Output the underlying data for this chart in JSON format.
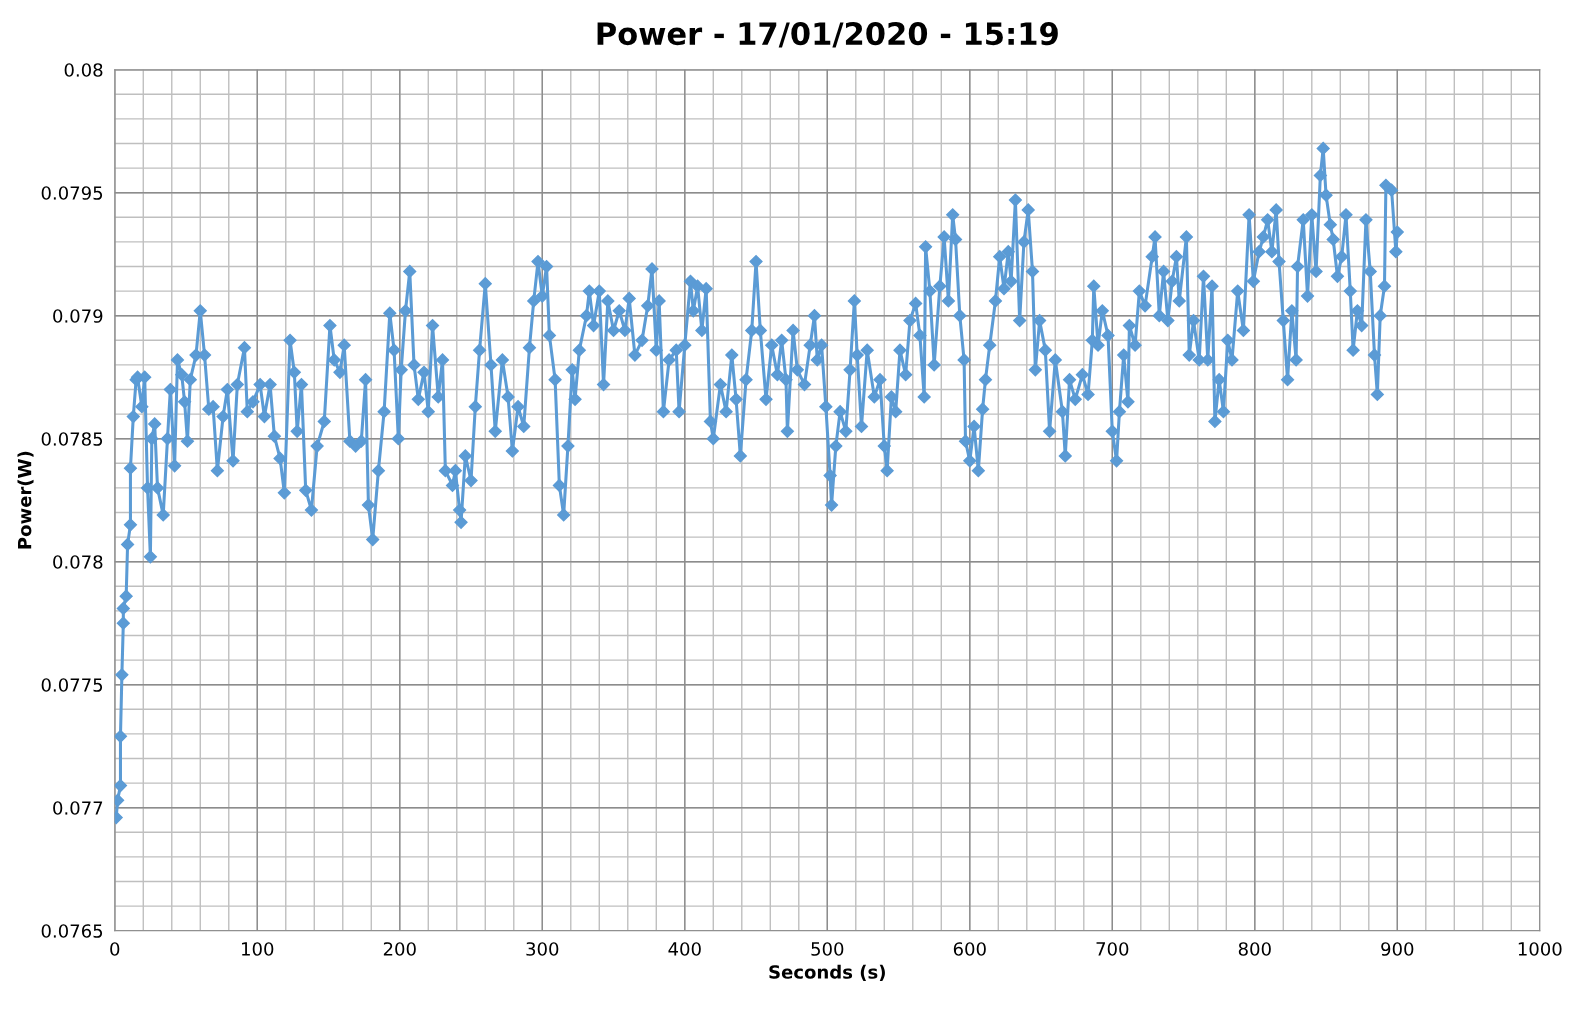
{
  "chart_data": {
    "type": "line",
    "title": "Power - 17/01/2020 - 15:19",
    "xlabel": "Seconds (s)",
    "ylabel": "Power(W)",
    "xlim": [
      0,
      1000
    ],
    "xticks": [
      0,
      {
        "value": 20,
        "label": null
      },
      {
        "value": 40,
        "label": null
      },
      {
        "value": 60,
        "label": null
      },
      {
        "value": 80,
        "label": null
      },
      100,
      {
        "value": 120,
        "label": null
      },
      {
        "value": 140,
        "label": null
      },
      {
        "value": 160,
        "label": null
      },
      {
        "value": 180,
        "label": null
      },
      200,
      {
        "value": 220,
        "label": null
      },
      {
        "value": 240,
        "label": null
      },
      {
        "value": 260,
        "label": null
      },
      {
        "value": 280,
        "label": null
      },
      300,
      {
        "value": 320,
        "label": null
      },
      {
        "value": 340,
        "label": null
      },
      {
        "value": 360,
        "label": null
      },
      {
        "value": 380,
        "label": null
      },
      400,
      {
        "value": 420,
        "label": null
      },
      {
        "value": 440,
        "label": null
      },
      {
        "value": 460,
        "label": null
      },
      {
        "value": 480,
        "label": null
      },
      500,
      {
        "value": 520,
        "label": null
      },
      {
        "value": 540,
        "label": null
      },
      {
        "value": 560,
        "label": null
      },
      {
        "value": 580,
        "label": null
      },
      600,
      {
        "value": 620,
        "label": null
      },
      {
        "value": 640,
        "label": null
      },
      {
        "value": 660,
        "label": null
      },
      {
        "value": 680,
        "label": null
      },
      700,
      {
        "value": 720,
        "label": null
      },
      {
        "value": 740,
        "label": null
      },
      {
        "value": 760,
        "label": null
      },
      {
        "value": 780,
        "label": null
      },
      800,
      {
        "value": 820,
        "label": null
      },
      {
        "value": 840,
        "label": null
      },
      {
        "value": 860,
        "label": null
      },
      {
        "value": 880,
        "label": null
      },
      900,
      {
        "value": 920,
        "label": null
      },
      {
        "value": 940,
        "label": null
      },
      {
        "value": 960,
        "label": null
      },
      {
        "value": 980,
        "label": null
      },
      1000
    ],
    "ylim": [
      0.0765,
      0.08
    ],
    "yticks": [
      0.0765,
      {
        "value": 0.0766,
        "label": null
      },
      {
        "value": 0.0767,
        "label": null
      },
      {
        "value": 0.0768,
        "label": null
      },
      {
        "value": 0.0769,
        "label": null
      },
      0.077,
      {
        "value": 0.0771,
        "label": null
      },
      {
        "value": 0.0772,
        "label": null
      },
      {
        "value": 0.0773,
        "label": null
      },
      {
        "value": 0.0774,
        "label": null
      },
      0.0775,
      {
        "value": 0.0776,
        "label": null
      },
      {
        "value": 0.0777,
        "label": null
      },
      {
        "value": 0.0778,
        "label": null
      },
      {
        "value": 0.0779,
        "label": null
      },
      0.078,
      {
        "value": 0.0781,
        "label": null
      },
      {
        "value": 0.0782,
        "label": null
      },
      {
        "value": 0.0783,
        "label": null
      },
      {
        "value": 0.0784,
        "label": null
      },
      0.0785,
      {
        "value": 0.0786,
        "label": null
      },
      {
        "value": 0.0787,
        "label": null
      },
      {
        "value": 0.0788,
        "label": null
      },
      {
        "value": 0.0789,
        "label": null
      },
      0.079,
      {
        "value": 0.0791,
        "label": null
      },
      {
        "value": 0.0792,
        "label": null
      },
      {
        "value": 0.0793,
        "label": null
      },
      {
        "value": 0.0794,
        "label": null
      },
      0.0795,
      {
        "value": 0.0796,
        "label": null
      },
      {
        "value": 0.0797,
        "label": null
      },
      {
        "value": 0.0798,
        "label": null
      },
      {
        "value": 0.0799,
        "label": null
      },
      0.08
    ],
    "grid": true,
    "marker": "diamond",
    "line_style": "solid",
    "series": [
      {
        "color": "#5b9bd5",
        "x": [
          1,
          2,
          4,
          4,
          5,
          6,
          6,
          8,
          9,
          11,
          11,
          13,
          15,
          16,
          19,
          21,
          23,
          25,
          26,
          28,
          30,
          34,
          37,
          39,
          42,
          44,
          47,
          49,
          51,
          53,
          57,
          60,
          63,
          66,
          69,
          72,
          76,
          79,
          83,
          86,
          91,
          93,
          97,
          102,
          105,
          109,
          112,
          116,
          119,
          123,
          126,
          128,
          131,
          134,
          138,
          142,
          147,
          151,
          154,
          158,
          161,
          165,
          169,
          173,
          176,
          178,
          181,
          185,
          189,
          193,
          196,
          199,
          201,
          204,
          207,
          210,
          213,
          217,
          220,
          223,
          227,
          230,
          232,
          237,
          239,
          242,
          243,
          246,
          250,
          253,
          256,
          260,
          264,
          267,
          272,
          276,
          279,
          283,
          287,
          291,
          294,
          297,
          300,
          303,
          305,
          309,
          312,
          315,
          318,
          321,
          323,
          326,
          331,
          333,
          336,
          340,
          343,
          346,
          350,
          354,
          358,
          361,
          365,
          370,
          374,
          377,
          380,
          382,
          385,
          389,
          394,
          396,
          400,
          404,
          406,
          409,
          412,
          415,
          418,
          420,
          425,
          429,
          433,
          436,
          439,
          443,
          447,
          450,
          453,
          457,
          461,
          465,
          468,
          471,
          472,
          476,
          479,
          484,
          488,
          491,
          493,
          496,
          499,
          502,
          503,
          506,
          509,
          513,
          516,
          519,
          521,
          524,
          528,
          533,
          537,
          540,
          542,
          545,
          548,
          551,
          555,
          558,
          562,
          565,
          568,
          569,
          572,
          575,
          579,
          582,
          585,
          588,
          590,
          593,
          596,
          597,
          600,
          603,
          606,
          609,
          611,
          614,
          618,
          621,
          624,
          627,
          629,
          632,
          635,
          638,
          641,
          644,
          646,
          649,
          653,
          656,
          660,
          665,
          667,
          670,
          674,
          679,
          683,
          686,
          687,
          690,
          693,
          697,
          700,
          703,
          705,
          708,
          711,
          712,
          716,
          719,
          723,
          728,
          730,
          733,
          736,
          739,
          742,
          745,
          747,
          752,
          754,
          757,
          761,
          764,
          767,
          770,
          772,
          775,
          778,
          781,
          784,
          788,
          792,
          796,
          799,
          803,
          806,
          809,
          812,
          815,
          817,
          820,
          823,
          826,
          829,
          830,
          834,
          837,
          840,
          843,
          846,
          848,
          850,
          853,
          855,
          858,
          861,
          864,
          867,
          869,
          872,
          875,
          878,
          881,
          884,
          886,
          888,
          891,
          892,
          896,
          899,
          900
        ],
        "values": [
          0.07696,
          0.07703,
          0.07709,
          0.07729,
          0.07754,
          0.07775,
          0.07781,
          0.07786,
          0.07807,
          0.07815,
          0.07838,
          0.07859,
          0.07874,
          0.07875,
          0.07863,
          0.07875,
          0.0783,
          0.07802,
          0.0785,
          0.07856,
          0.0783,
          0.07819,
          0.0785,
          0.0787,
          0.07839,
          0.07882,
          0.07876,
          0.07865,
          0.07849,
          0.07874,
          0.07884,
          0.07902,
          0.07884,
          0.07862,
          0.07863,
          0.07837,
          0.07859,
          0.0787,
          0.07841,
          0.07872,
          0.07887,
          0.07861,
          0.07865,
          0.07872,
          0.07859,
          0.07872,
          0.07851,
          0.07842,
          0.07828,
          0.0789,
          0.07877,
          0.07853,
          0.07872,
          0.07829,
          0.07821,
          0.07847,
          0.07857,
          0.07896,
          0.07882,
          0.07877,
          0.07888,
          0.07849,
          0.07847,
          0.07849,
          0.07874,
          0.07823,
          0.07809,
          0.07837,
          0.07861,
          0.07901,
          0.07886,
          0.0785,
          0.07878,
          0.07902,
          0.07918,
          0.0788,
          0.07866,
          0.07877,
          0.07861,
          0.07896,
          0.07867,
          0.07882,
          0.07837,
          0.07831,
          0.07837,
          0.07821,
          0.07816,
          0.07843,
          0.07833,
          0.07863,
          0.07886,
          0.07913,
          0.0788,
          0.07853,
          0.07882,
          0.07867,
          0.07845,
          0.07863,
          0.07855,
          0.07887,
          0.07906,
          0.07922,
          0.07908,
          0.0792,
          0.07892,
          0.07874,
          0.07831,
          0.07819,
          0.07847,
          0.07878,
          0.07866,
          0.07886,
          0.079,
          0.0791,
          0.07896,
          0.0791,
          0.07872,
          0.07906,
          0.07894,
          0.07902,
          0.07894,
          0.07907,
          0.07884,
          0.0789,
          0.07904,
          0.07919,
          0.07886,
          0.07906,
          0.07861,
          0.07882,
          0.07886,
          0.07861,
          0.07888,
          0.07914,
          0.07902,
          0.07912,
          0.07894,
          0.07911,
          0.07857,
          0.0785,
          0.07872,
          0.07861,
          0.07884,
          0.07866,
          0.07843,
          0.07874,
          0.07894,
          0.07922,
          0.07894,
          0.07866,
          0.07888,
          0.07876,
          0.0789,
          0.07874,
          0.07853,
          0.07894,
          0.07878,
          0.07872,
          0.07888,
          0.079,
          0.07882,
          0.07888,
          0.07863,
          0.07835,
          0.07823,
          0.07847,
          0.07861,
          0.07853,
          0.07878,
          0.07906,
          0.07884,
          0.07855,
          0.07886,
          0.07867,
          0.07874,
          0.07847,
          0.07837,
          0.07867,
          0.07861,
          0.07886,
          0.07876,
          0.07898,
          0.07905,
          0.07892,
          0.07867,
          0.07928,
          0.0791,
          0.0788,
          0.07912,
          0.07932,
          0.07906,
          0.07941,
          0.07931,
          0.079,
          0.07882,
          0.07849,
          0.07841,
          0.07855,
          0.07837,
          0.07862,
          0.07874,
          0.07888,
          0.07906,
          0.07924,
          0.07911,
          0.07926,
          0.07914,
          0.07947,
          0.07898,
          0.0793,
          0.07943,
          0.07918,
          0.07878,
          0.07898,
          0.07886,
          0.07853,
          0.07882,
          0.07861,
          0.07843,
          0.07874,
          0.07866,
          0.07876,
          0.07868,
          0.0789,
          0.07912,
          0.07888,
          0.07902,
          0.07892,
          0.07853,
          0.07841,
          0.07861,
          0.07884,
          0.07865,
          0.07896,
          0.07888,
          0.0791,
          0.07904,
          0.07924,
          0.07932,
          0.079,
          0.07918,
          0.07898,
          0.07914,
          0.07924,
          0.07906,
          0.07932,
          0.07884,
          0.07898,
          0.07882,
          0.07916,
          0.07882,
          0.07912,
          0.07857,
          0.07874,
          0.07861,
          0.0789,
          0.07882,
          0.0791,
          0.07894,
          0.07941,
          0.07914,
          0.07926,
          0.07932,
          0.07939,
          0.07926,
          0.07943,
          0.07922,
          0.07898,
          0.07874,
          0.07902,
          0.07882,
          0.0792,
          0.07939,
          0.07908,
          0.07941,
          0.07918,
          0.07957,
          0.07968,
          0.07949,
          0.07937,
          0.07931,
          0.07916,
          0.07924,
          0.07941,
          0.0791,
          0.07886,
          0.07902,
          0.07896,
          0.07939,
          0.07918,
          0.07884,
          0.07868,
          0.079,
          0.07912,
          0.07953,
          0.07951,
          0.07926,
          0.07934
        ]
      }
    ]
  }
}
